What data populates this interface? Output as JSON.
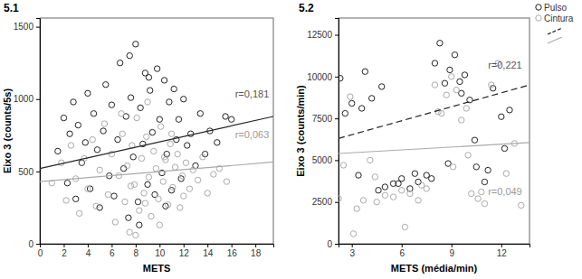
{
  "chart_data": [
    {
      "type": "scatter",
      "title": "5.1",
      "x_label": "METS",
      "y_label": "Eixo 3 (counts/5s)",
      "xlim": [
        0,
        19.5
      ],
      "xticks": [
        0,
        2,
        4,
        6,
        8,
        10,
        12,
        14,
        16,
        18
      ],
      "ylim": [
        0,
        1560
      ],
      "yticks": [
        0,
        500,
        1000,
        1500
      ],
      "series": [
        {
          "color": "#222222",
          "marker": "circle",
          "x": [
            1.5,
            2,
            2.3,
            2.5,
            2.8,
            3,
            3.2,
            3.5,
            3.8,
            4,
            4.2,
            4.5,
            4.8,
            5,
            5.3,
            5.5,
            5.8,
            6,
            6.2,
            6.5,
            6.7,
            7,
            7.2,
            7.4,
            7.6,
            7.8,
            8,
            8.2,
            8.4,
            8.6,
            8.8,
            9,
            9.2,
            9.4,
            9.6,
            9.8,
            10,
            10.2,
            10.4,
            10.6,
            10.8,
            11,
            11.2,
            11.4,
            11.6,
            11.8,
            12,
            12.3,
            12.6,
            13,
            13.4,
            13.8,
            14.2,
            14.8,
            15.5,
            16,
            7.5,
            8.3,
            9.1,
            10.5
          ],
          "values": [
            640,
            870,
            420,
            760,
            980,
            310,
            820,
            560,
            700,
            1040,
            380,
            900,
            650,
            250,
            780,
            1100,
            470,
            960,
            330,
            720,
            1250,
            520,
            880,
            180,
            1010,
            600,
            1380,
            290,
            940,
            690,
            1180,
            410,
            1060,
            770,
            340,
            1210,
            860,
            490,
            1130,
            620,
            980,
            370,
            1070,
            720,
            860,
            450,
            1000,
            680,
            760,
            540,
            900,
            620,
            780,
            700,
            880,
            860,
            1300,
            130,
            1150,
            260
          ],
          "fit": {
            "x": [
              0,
              19.5
            ],
            "values": [
              520,
              880
            ],
            "line_style": "solid"
          }
        },
        {
          "color": "#aaaaaa",
          "marker": "circle",
          "x": [
            1,
            1.8,
            2.2,
            2.6,
            3,
            3.3,
            3.7,
            4,
            4.4,
            4.7,
            5,
            5.4,
            5.7,
            6,
            6.3,
            6.6,
            6.9,
            7.1,
            7.3,
            7.5,
            7.7,
            7.9,
            8.1,
            8.3,
            8.5,
            8.7,
            8.9,
            9.1,
            9.3,
            9.5,
            9.7,
            9.9,
            10.1,
            10.3,
            10.5,
            10.7,
            10.9,
            11.1,
            11.3,
            11.5,
            11.7,
            11.9,
            12.2,
            12.5,
            12.8,
            13.2,
            13.6,
            14,
            14.5,
            15,
            15.6,
            6.8,
            8,
            9,
            10,
            11,
            12,
            7.6,
            8.8,
            10.4
          ],
          "values": [
            420,
            560,
            300,
            680,
            450,
            210,
            590,
            380,
            720,
            260,
            510,
            830,
            340,
            620,
            150,
            470,
            760,
            290,
            540,
            80,
            680,
            410,
            870,
            230,
            590,
            350,
            740,
            460,
            190,
            640,
            520,
            310,
            810,
            430,
            580,
            270,
            690,
            390,
            530,
            620,
            250,
            470,
            560,
            380,
            510,
            440,
            600,
            350,
            480,
            520,
            430,
            900,
            60,
            980,
            130,
            760,
            330,
            400,
            280,
            600
          ],
          "fit": {
            "x": [
              0,
              19.5
            ],
            "values": [
              430,
              565
            ],
            "line_style": "solid"
          }
        }
      ],
      "annotations": [
        {
          "text": "r=0,181",
          "x": 16.3,
          "y": 1010,
          "color": "#555555"
        },
        {
          "text": "r=0,063",
          "x": 16.3,
          "y": 730,
          "color": "#999999"
        }
      ]
    },
    {
      "type": "scatter",
      "title": "5.2",
      "x_label": "METS (média/min)",
      "y_label": "Eixo 3 (counts/min)",
      "xlim": [
        2.2,
        13.7
      ],
      "xticks": [
        3,
        6,
        9,
        12
      ],
      "ylim": [
        0,
        13500
      ],
      "yticks": [
        0,
        2500,
        5000,
        7500,
        10000,
        12500
      ],
      "legend": "upper right",
      "series": [
        {
          "name": "Pulso",
          "color": "#222222",
          "marker": "circle",
          "x": [
            2.3,
            2.6,
            3,
            3.4,
            3.8,
            4.2,
            4.6,
            5,
            5.5,
            6,
            6.5,
            7,
            7.5,
            8,
            8.3,
            8.6,
            8.9,
            9.2,
            9.5,
            9.8,
            10.1,
            10.5,
            11,
            11.5,
            12,
            12.5,
            5.8,
            6.8,
            7.8,
            8.8,
            9.6,
            10.4,
            11.2,
            12.2,
            3.6,
            4.8
          ],
          "values": [
            9900,
            7800,
            8400,
            4100,
            10300,
            8700,
            3200,
            3400,
            3600,
            3900,
            3300,
            3700,
            4100,
            10800,
            12000,
            9600,
            10400,
            11300,
            9700,
            10100,
            8600,
            4600,
            3700,
            9300,
            7600,
            8000,
            3600,
            4200,
            3900,
            4800,
            9000,
            6200,
            4400,
            5700,
            8100,
            9400
          ],
          "fit": {
            "x": [
              2.2,
              13.7
            ],
            "values": [
              6300,
              9500
            ],
            "line_style": "dashed"
          }
        },
        {
          "name": "Cintura",
          "color": "#aaaaaa",
          "marker": "circle",
          "x": [
            2.2,
            2.5,
            2.9,
            3.3,
            3.7,
            4.1,
            4.5,
            5,
            5.5,
            6,
            6.5,
            7,
            7.5,
            8,
            8.4,
            8.7,
            9,
            9.3,
            9.6,
            9.9,
            10.2,
            10.6,
            11,
            11.4,
            11.8,
            12.3,
            12.8,
            13.2,
            6.2,
            7.2,
            8.2,
            9.1,
            10,
            10.8,
            4.4,
            3.1
          ],
          "values": [
            2700,
            4700,
            8800,
            2100,
            2600,
            5000,
            2500,
            2900,
            2800,
            3200,
            3000,
            2600,
            3300,
            9500,
            7800,
            8900,
            10000,
            9200,
            7400,
            8100,
            3000,
            2700,
            2400,
            9500,
            10800,
            4200,
            6000,
            2300,
            1000,
            3500,
            7900,
            4600,
            5300,
            3100,
            4000,
            600
          ],
          "fit": {
            "x": [
              2.2,
              13.7
            ],
            "values": [
              5400,
              6050
            ],
            "line_style": "solid"
          }
        }
      ],
      "annotations": [
        {
          "text": "r=0,221",
          "x": 11.2,
          "y": 10500,
          "color": "#555555"
        },
        {
          "text": "r=0,049",
          "x": 11.2,
          "y": 2900,
          "color": "#999999"
        }
      ]
    }
  ]
}
